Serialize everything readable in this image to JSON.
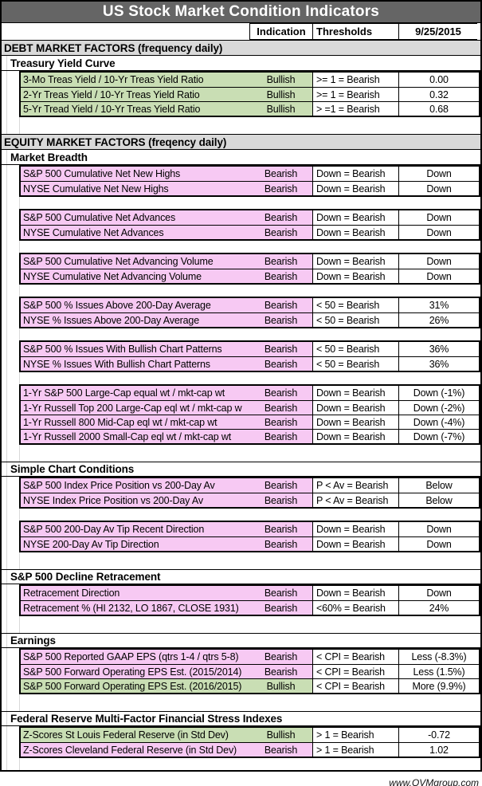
{
  "colors": {
    "bullish": "#c9deb4",
    "bearish": "#f7c9f3",
    "title_bg": "#656565",
    "section_bg": "#d9d9d9"
  },
  "chart_data": {
    "type": "table",
    "title": "US Stock Market Condition Indicators",
    "footer": "www.QVMgroup.com",
    "columns": {
      "indication": "Indication",
      "thresholds": "Thresholds",
      "date": "9/25/2015"
    },
    "rows": [
      {
        "type": "section",
        "label": "DEBT MARKET FACTORS (frequency daily)"
      },
      {
        "type": "subsection",
        "label": "Treasury Yield Curve"
      },
      {
        "type": "group",
        "items": [
          {
            "name": "3-Mo Treas Yield / 10-Yr Treas Yield Ratio",
            "indication": "Bullish",
            "threshold": ">= 1 = Bearish",
            "value": "0.00",
            "tone": "bullish"
          },
          {
            "name": "2-Yr Treas Yield / 10-Yr Treas Yield Ratio",
            "indication": "Bullish",
            "threshold": ">= 1 = Bearish",
            "value": "0.32",
            "tone": "bullish"
          },
          {
            "name": "5-Yr Tread Yield / 10-Yr Treas Yield Ratio",
            "indication": "Bullish",
            "threshold": "> =1 = Bearish",
            "value": "0.68",
            "tone": "bullish"
          }
        ]
      },
      {
        "type": "spacer",
        "tall": true
      },
      {
        "type": "section",
        "label": "EQUITY MARKET FACTORS (freqency daily)"
      },
      {
        "type": "subsection",
        "label": "Market Breadth"
      },
      {
        "type": "group",
        "items": [
          {
            "name": "S&P 500 Cumulative Net New Highs",
            "indication": "Bearish",
            "threshold": "Down = Bearish",
            "value": "Down",
            "tone": "bearish"
          },
          {
            "name": "NYSE Cumulative Net New Highs",
            "indication": "Bearish",
            "threshold": "Down = Bearish",
            "value": "Down",
            "tone": "bearish"
          }
        ]
      },
      {
        "type": "spacer"
      },
      {
        "type": "group",
        "items": [
          {
            "name": "S&P 500 Cumulative Net Advances",
            "indication": "Bearish",
            "threshold": "Down = Bearish",
            "value": "Down",
            "tone": "bearish"
          },
          {
            "name": "NYSE Cumulative Net Advances",
            "indication": "Bearish",
            "threshold": "Down = Bearish",
            "value": "Down",
            "tone": "bearish"
          }
        ]
      },
      {
        "type": "spacer"
      },
      {
        "type": "group",
        "items": [
          {
            "name": "S&P 500 Cumulative Net Advancing Volume",
            "indication": "Bearish",
            "threshold": "Down = Bearish",
            "value": "Down",
            "tone": "bearish"
          },
          {
            "name": "NYSE Cumulative Net Advancing Volume",
            "indication": "Bearish",
            "threshold": "Down = Bearish",
            "value": "Down",
            "tone": "bearish"
          }
        ]
      },
      {
        "type": "spacer"
      },
      {
        "type": "group",
        "items": [
          {
            "name": "S&P 500 % Issues Above 200-Day Average",
            "indication": "Bearish",
            "threshold": "< 50 = Bearish",
            "value": "31%",
            "tone": "bearish"
          },
          {
            "name": "NYSE % Issues Above 200-Day Average",
            "indication": "Bearish",
            "threshold": "< 50 = Bearish",
            "value": "26%",
            "tone": "bearish"
          }
        ]
      },
      {
        "type": "spacer"
      },
      {
        "type": "group",
        "items": [
          {
            "name": "S&P 500 % Issues With Bullish Chart Patterns",
            "indication": "Bearish",
            "threshold": "< 50 = Bearish",
            "value": "36%",
            "tone": "bearish"
          },
          {
            "name": "NYSE % Issues With Bullish Chart Patterns",
            "indication": "Bearish",
            "threshold": "< 50 = Bearish",
            "value": "36%",
            "tone": "bearish"
          }
        ]
      },
      {
        "type": "spacer"
      },
      {
        "type": "group",
        "items": [
          {
            "name": "1-Yr S&P 500 Large-Cap equal wt / mkt-cap wt",
            "indication": "Bearish",
            "threshold": "Down = Bearish",
            "value": "Down (-1%)",
            "tone": "bearish"
          },
          {
            "name": "1-Yr Russell Top 200 Large-Cap eql wt / mkt-cap w",
            "indication": "Bearish",
            "threshold": "Down = Bearish",
            "value": "Down (-2%)",
            "tone": "bearish"
          },
          {
            "name": "1-Yr Russell 800 Mid-Cap eql wt / mkt-cap wt",
            "indication": "Bearish",
            "threshold": "Down = Bearish",
            "value": "Down (-4%)",
            "tone": "bearish"
          },
          {
            "name": "1-Yr Russell 2000 Small-Cap eql wt / mkt-cap wt",
            "indication": "Bearish",
            "threshold": "Down = Bearish",
            "value": "Down (-7%)",
            "tone": "bearish"
          }
        ]
      },
      {
        "type": "spacer",
        "tall": true
      },
      {
        "type": "subsection",
        "label": "Simple Chart Conditions"
      },
      {
        "type": "group",
        "items": [
          {
            "name": "S&P 500 Index Price Position vs 200-Day Av",
            "indication": "Bearish",
            "threshold": "P < Av = Bearish",
            "value": "Below",
            "tone": "bearish"
          },
          {
            "name": "NYSE Index Price Position vs 200-Day Av",
            "indication": "Bearish",
            "threshold": "P < Av = Bearish",
            "value": "Below",
            "tone": "bearish"
          }
        ]
      },
      {
        "type": "spacer"
      },
      {
        "type": "group",
        "items": [
          {
            "name": "S&P 500 200-Day Av Tip Recent Direction",
            "indication": "Bearish",
            "threshold": "Down = Bearish",
            "value": "Down",
            "tone": "bearish"
          },
          {
            "name": "NYSE 200-Day Av Tip Direction",
            "indication": "Bearish",
            "threshold": "Down = Bearish",
            "value": "Down",
            "tone": "bearish"
          }
        ]
      },
      {
        "type": "spacer",
        "tall": true
      },
      {
        "type": "subsection",
        "label": "S&P 500 Decline Retracement"
      },
      {
        "type": "group",
        "items": [
          {
            "name": "Retracement Direction",
            "indication": "Bearish",
            "threshold": "Down = Bearish",
            "value": "Down",
            "tone": "bearish"
          },
          {
            "name": "Retracement % (HI 2132, LO 1867, CLOSE 1931)",
            "indication": "Bearish",
            "threshold": "<60% = Bearish",
            "value": "24%",
            "tone": "bearish"
          }
        ]
      },
      {
        "type": "spacer",
        "tall": true
      },
      {
        "type": "subsection",
        "label": "Earnings"
      },
      {
        "type": "group",
        "items": [
          {
            "name": "S&P 500 Reported GAAP EPS  (qtrs 1-4 / qtrs 5-8)",
            "indication": "Bearish",
            "threshold": "< CPI = Bearish",
            "value": "Less (-8.3%)",
            "tone": "bearish"
          },
          {
            "name": "S&P 500 Forward Operating EPS  Est. (2015/2014)",
            "indication": "Bearish",
            "threshold": "< CPI = Bearish",
            "value": "Less (1.5%)",
            "tone": "bearish"
          },
          {
            "name": "S&P 500 Forward Operating EPS  Est. (2016/2015)",
            "indication": "Bullish",
            "threshold": "< CPI = Bearish",
            "value": "More (9.9%)",
            "tone": "bullish"
          }
        ]
      },
      {
        "type": "spacer",
        "tall": true
      },
      {
        "type": "subsection",
        "label": "Federal Reserve Multi-Factor Financial Stress Indexes"
      },
      {
        "type": "group",
        "items": [
          {
            "name": "Z-Scores St Louis Federal Reserve (in Std Dev)",
            "indication": "Bullish",
            "threshold": "> 1 = Bearish",
            "value": "-0.72",
            "tone": "bullish"
          },
          {
            "name": "Z-Scores Cleveland Federal Reserve (in Std Dev)",
            "indication": "Bearish",
            "threshold": "> 1 = Bearish",
            "value": "1.02",
            "tone": "bearish"
          }
        ]
      },
      {
        "type": "spacer"
      }
    ]
  }
}
